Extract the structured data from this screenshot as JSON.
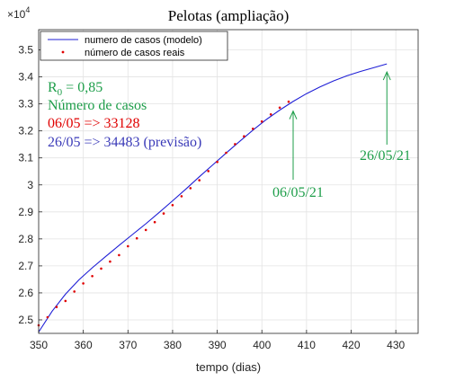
{
  "chart_data": {
    "type": "line",
    "title": "Pelotas (ampliação)",
    "xlabel": "tempo (dias)",
    "ylabel": "",
    "y_exponent_label": "×10",
    "y_exponent_power": "4",
    "xlim": [
      350,
      435
    ],
    "ylim": [
      24500,
      35750
    ],
    "x_ticks": [
      350,
      360,
      370,
      380,
      390,
      400,
      410,
      420,
      430
    ],
    "y_ticks": [
      25000,
      26000,
      27000,
      28000,
      29000,
      30000,
      31000,
      32000,
      33000,
      34000,
      35000
    ],
    "y_tick_labels": [
      "2.5",
      "2.6",
      "2.7",
      "2.8",
      "2.9",
      "3",
      "3.1",
      "3.2",
      "3.3",
      "3.4",
      "3.5"
    ],
    "grid": true,
    "legend_position": "top-left",
    "series": [
      {
        "name": "numero de casos (modelo)",
        "style": "line",
        "color": "#1f1fd6",
        "x": [
          350,
          353,
          356,
          359,
          362,
          365,
          368,
          371,
          374,
          377,
          380,
          383,
          386,
          389,
          392,
          395,
          398,
          401,
          404,
          407,
          410,
          413,
          416,
          419,
          422,
          425,
          428
        ],
        "y": [
          24550,
          25320,
          25950,
          26480,
          26930,
          27350,
          27760,
          28160,
          28560,
          28980,
          29410,
          29850,
          30300,
          30740,
          31180,
          31610,
          32030,
          32420,
          32770,
          33090,
          33380,
          33630,
          33850,
          34040,
          34200,
          34340,
          34483
        ]
      },
      {
        "name": "número de casos reais",
        "style": "markers",
        "color": "#e00000",
        "x": [
          350,
          352,
          354,
          356,
          358,
          360,
          362,
          364,
          366,
          368,
          370,
          372,
          374,
          376,
          378,
          380,
          382,
          384,
          386,
          388,
          390,
          392,
          394,
          396,
          398,
          400,
          402,
          404,
          406
        ],
        "y": [
          24800,
          25100,
          25480,
          25700,
          26050,
          26350,
          26620,
          26900,
          27160,
          27400,
          27730,
          28020,
          28330,
          28620,
          28940,
          29250,
          29580,
          29880,
          30170,
          30510,
          30850,
          31190,
          31510,
          31800,
          32080,
          32350,
          32610,
          32860,
          33080
        ]
      }
    ],
    "annotations": [
      {
        "text": "R",
        "color": "#1e9e4a"
      },
      {
        "text": "0",
        "color": "#1e9e4a"
      },
      {
        "text": " = 0,85",
        "color": "#1e9e4a"
      },
      {
        "text": "Número de casos",
        "color": "#1e9e4a"
      },
      {
        "text": "06/05 => 33128",
        "color": "#e00000"
      },
      {
        "text": "26/05 => 34483 (previsão)",
        "color": "#3a3ab8"
      },
      {
        "text": "06/05/21",
        "color": "#1e9e4a",
        "arrow_x": 407,
        "arrow_y": 33000
      },
      {
        "text": "26/05/21",
        "color": "#1e9e4a",
        "arrow_x": 428,
        "arrow_y": 34450
      }
    ]
  }
}
